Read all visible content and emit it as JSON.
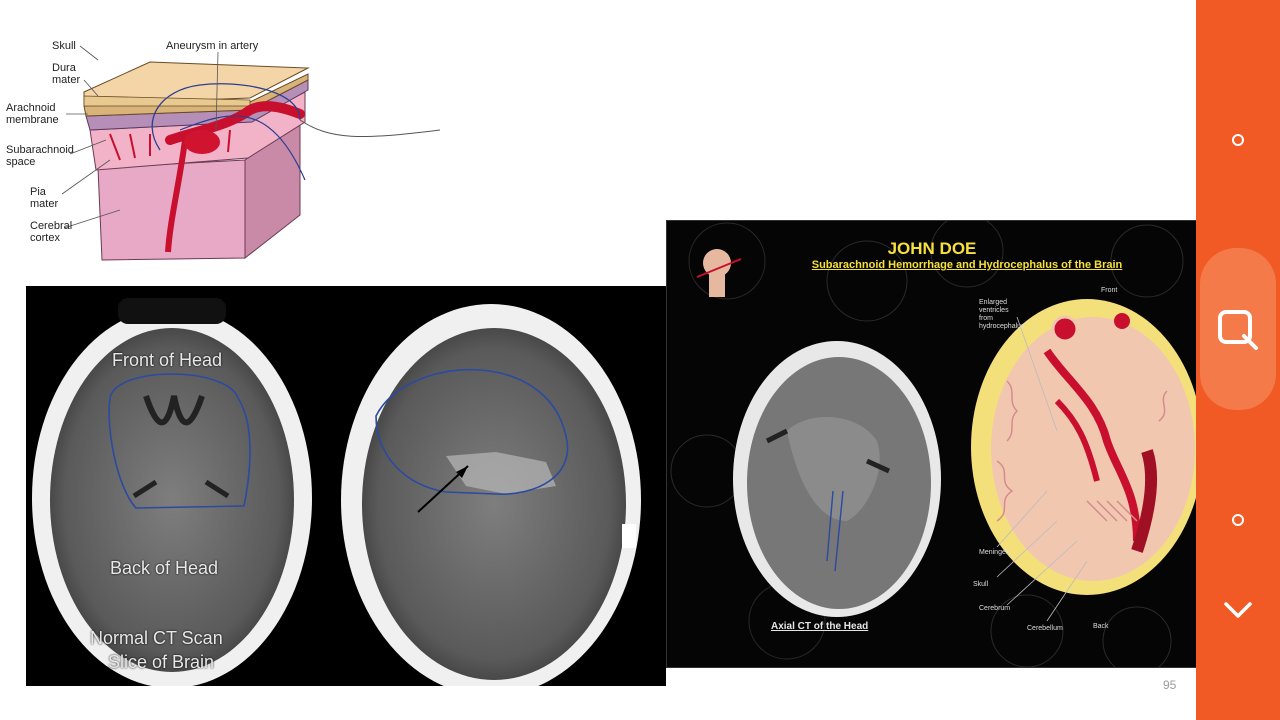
{
  "diagram": {
    "labels": {
      "skull": "Skull",
      "dura": "Dura\nmater",
      "aneurysm": "Aneurysm in artery",
      "arachnoid": "Arachnoid\nmembrane",
      "subarachnoid": "Subarachnoid\nspace",
      "pia": "Pia\nmater",
      "cortex": "Cerebral\ncortex"
    }
  },
  "ct_left": {
    "front_label": "Front of Head",
    "back_label": "Back of Head",
    "caption_line1": "Normal CT Scan",
    "caption_line2": "Slice of Brain"
  },
  "exhibit": {
    "patient_name": "JOHN DOE",
    "subtitle": "Subarachnoid Hemorrhage and Hydrocephalus of the Brain",
    "caption": "Axial CT of the Head",
    "labels": {
      "enlarged": "Enlarged\nventricles\nfrom\nhydrocephalus",
      "front": "Front",
      "meninges": "Meninges",
      "skull": "Skull",
      "cerebrum": "Cerebrum",
      "cerebellum": "Cerebellum",
      "back": "Back"
    }
  },
  "slide": {
    "page_number": "95"
  },
  "toolbar": {
    "icons": [
      "circle-icon",
      "search-icon",
      "circle-icon",
      "chevron-down-icon"
    ],
    "color": "#f15a24"
  }
}
